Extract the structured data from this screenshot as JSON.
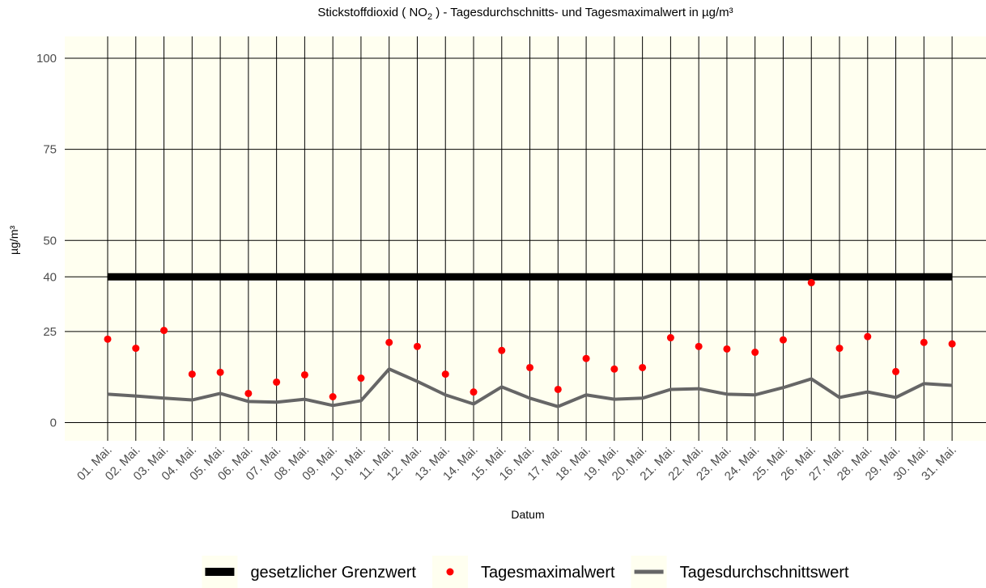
{
  "chart_data": {
    "type": "line",
    "title": [
      "Stickstoffdioxid ( NO",
      "2",
      " ) - Tagesdurchschnitts- und Tagesmaximalwert in µg/m³"
    ],
    "xlabel": "Datum",
    "ylabel": "µg/m³",
    "categories": [
      "01. Mai.",
      "02. Mai.",
      "03. Mai.",
      "04. Mai.",
      "05. Mai.",
      "06. Mai.",
      "07. Mai.",
      "08. Mai.",
      "09. Mai.",
      "10. Mai.",
      "11. Mai.",
      "12. Mai.",
      "13. Mai.",
      "14. Mai.",
      "15. Mai.",
      "16. Mai.",
      "17. Mai.",
      "18. Mai.",
      "19. Mai.",
      "20. Mai.",
      "21. Mai.",
      "22. Mai.",
      "23. Mai.",
      "24. Mai.",
      "25. Mai.",
      "26. Mai.",
      "27. Mai.",
      "28. Mai.",
      "29. Mai.",
      "30. Mai.",
      "31. Mai."
    ],
    "series": [
      {
        "name": "gesetzlicher Grenzwert",
        "color": "#000000",
        "mark": "line",
        "width": 9,
        "values": [
          40,
          40,
          40,
          40,
          40,
          40,
          40,
          40,
          40,
          40,
          40,
          40,
          40,
          40,
          40,
          40,
          40,
          40,
          40,
          40,
          40,
          40,
          40,
          40,
          40,
          40,
          40,
          40,
          40,
          40,
          40
        ]
      },
      {
        "name": "Tagesmaximalwert",
        "color": "#ff0000",
        "mark": "point",
        "values": [
          22.9,
          20.4,
          25.3,
          13.3,
          13.8,
          8,
          11.1,
          13.1,
          7.1,
          12.2,
          22,
          20.9,
          13.3,
          8.4,
          19.8,
          15.1,
          9.1,
          17.6,
          14.7,
          15.1,
          23.3,
          20.9,
          20.2,
          19.3,
          22.7,
          38.4,
          20.4,
          23.6,
          14,
          22,
          21.6
        ]
      },
      {
        "name": "Tagesdurchschnittswert",
        "color": "#666666",
        "mark": "line",
        "width": 4,
        "values": [
          7.8,
          7.3,
          6.7,
          6.2,
          8,
          5.8,
          5.6,
          6.4,
          4.7,
          6,
          14.7,
          11.3,
          7.6,
          5.1,
          9.8,
          6.7,
          4.4,
          7.6,
          6.4,
          6.7,
          9.1,
          9.3,
          7.8,
          7.6,
          9.6,
          12,
          6.9,
          8.4,
          6.9,
          10.7,
          10.2
        ]
      }
    ],
    "ylim": [
      -5,
      106
    ],
    "yticks": [
      0,
      25,
      40,
      50,
      75,
      100
    ],
    "grid": true,
    "legend": "bottom",
    "panel_color": "#fffff0"
  }
}
